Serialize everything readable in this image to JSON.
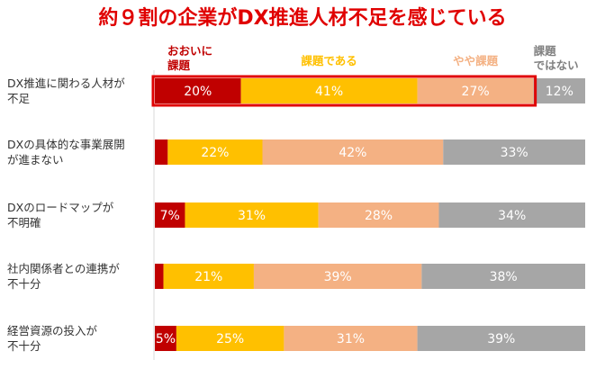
{
  "chart_data": {
    "type": "bar",
    "orientation": "horizontal",
    "stacked": true,
    "title": "約９割の企業がDX推進人材不足を感じている",
    "title_color": "#e00000",
    "categories": [
      [
        "DX推進に関わる人材が",
        "不足"
      ],
      [
        "DXの具体的な事業展開",
        "が進まない"
      ],
      [
        "DXのロードマップが",
        "不明確"
      ],
      [
        "社内関係者との連携が",
        "不十分"
      ],
      [
        "経営資源の投入が",
        "不十分"
      ]
    ],
    "series": [
      {
        "name": [
          "おおいに",
          "課題"
        ],
        "color": "#c00000",
        "values": [
          20,
          3,
          7,
          2,
          5
        ],
        "labels": [
          "20%",
          "",
          "7%",
          "",
          "5%"
        ]
      },
      {
        "name": [
          "課題である"
        ],
        "color": "#ffc000",
        "values": [
          41,
          22,
          31,
          21,
          25
        ],
        "labels": [
          "41%",
          "22%",
          "31%",
          "21%",
          "25%"
        ]
      },
      {
        "name": [
          "やや課題"
        ],
        "color": "#f4b183",
        "values": [
          27,
          42,
          28,
          39,
          31
        ],
        "labels": [
          "27%",
          "42%",
          "28%",
          "39%",
          "31%"
        ]
      },
      {
        "name": [
          "課題",
          "ではない"
        ],
        "color": "#a6a6a6",
        "values": [
          12,
          33,
          34,
          38,
          39
        ],
        "labels": [
          "12%",
          "33%",
          "34%",
          "38%",
          "39%"
        ]
      }
    ],
    "xlim": [
      0,
      100
    ],
    "unit": "%",
    "highlight": {
      "row": 0,
      "series": [
        0,
        1,
        2
      ],
      "color": "#e00000"
    },
    "legend_placement": "top"
  }
}
